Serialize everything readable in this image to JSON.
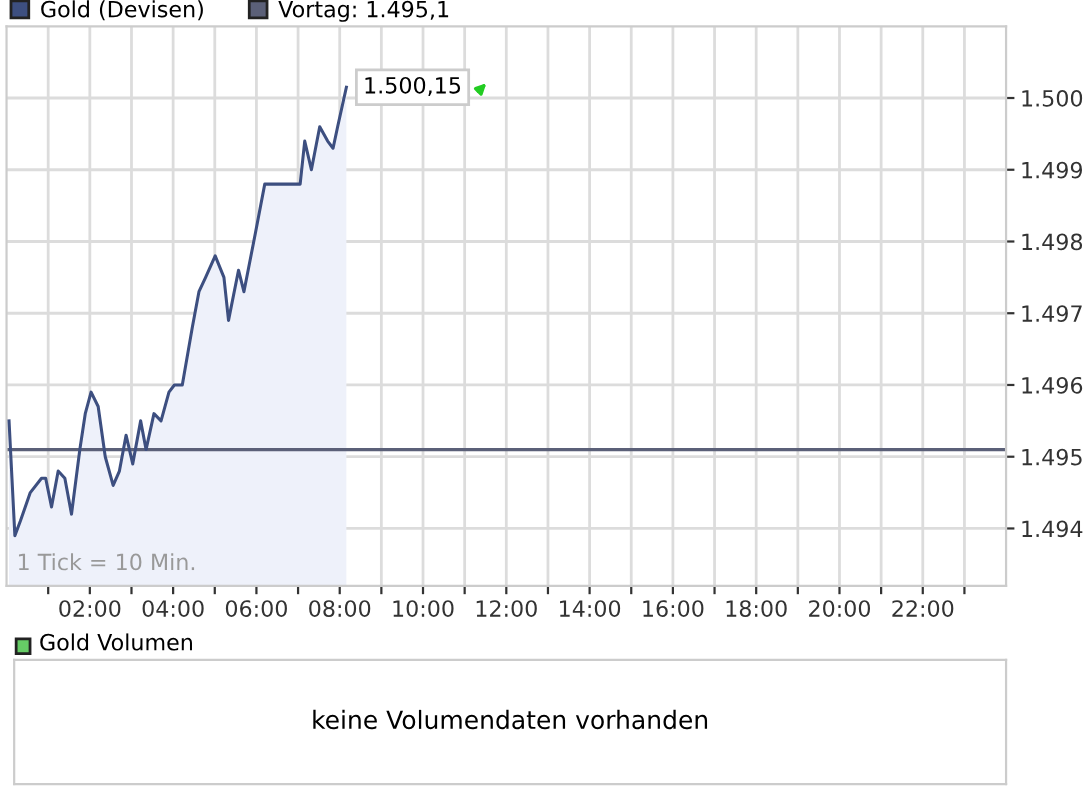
{
  "chart_data": [
    {
      "type": "area",
      "xlim": [
        0,
        24
      ],
      "ylim": [
        1493.2,
        1501.0
      ],
      "xticks": [
        {
          "value": 1,
          "label": null
        },
        {
          "value": 2,
          "label": "02:00"
        },
        {
          "value": 3,
          "label": null
        },
        {
          "value": 4,
          "label": "04:00"
        },
        {
          "value": 5,
          "label": null
        },
        {
          "value": 6,
          "label": "06:00"
        },
        {
          "value": 7,
          "label": null
        },
        {
          "value": 8,
          "label": "08:00"
        },
        {
          "value": 9,
          "label": null
        },
        {
          "value": 10,
          "label": "10:00"
        },
        {
          "value": 11,
          "label": null
        },
        {
          "value": 12,
          "label": "12:00"
        },
        {
          "value": 13,
          "label": null
        },
        {
          "value": 14,
          "label": "14:00"
        },
        {
          "value": 15,
          "label": null
        },
        {
          "value": 16,
          "label": "16:00"
        },
        {
          "value": 17,
          "label": null
        },
        {
          "value": 18,
          "label": "18:00"
        },
        {
          "value": 19,
          "label": null
        },
        {
          "value": 20,
          "label": "20:00"
        },
        {
          "value": 21,
          "label": null
        },
        {
          "value": 22,
          "label": "22:00"
        },
        {
          "value": 23,
          "label": null
        }
      ],
      "yticks": [
        {
          "value": 1494,
          "label": "1.494"
        },
        {
          "value": 1495,
          "label": "1.495"
        },
        {
          "value": 1496,
          "label": "1.496"
        },
        {
          "value": 1497,
          "label": "1.497"
        },
        {
          "value": 1498,
          "label": "1.498"
        },
        {
          "value": 1499,
          "label": "1.499"
        },
        {
          "value": 1500,
          "label": "1.500"
        }
      ],
      "grid": true,
      "legend": "top left",
      "series": [
        {
          "name": "Gold (Devisen)",
          "color": "#3d4f80",
          "x": [
            0.06,
            0.13,
            0.2,
            0.33,
            0.57,
            0.84,
            0.94,
            1.08,
            1.24,
            1.4,
            1.56,
            1.76,
            1.89,
            2.03,
            2.2,
            2.37,
            2.56,
            2.71,
            2.87,
            3.03,
            3.22,
            3.35,
            3.54,
            3.71,
            3.9,
            4.03,
            4.22,
            4.46,
            4.62,
            4.78,
            5.01,
            5.22,
            5.33,
            5.57,
            5.7,
            5.97,
            6.2,
            7.05,
            7.16,
            7.32,
            7.52,
            7.71,
            7.84,
            7.95,
            8.16
          ],
          "values": [
            1495.5,
            1494.7,
            1493.9,
            1494.1,
            1494.5,
            1494.7,
            1494.7,
            1494.3,
            1494.8,
            1494.7,
            1494.2,
            1495.1,
            1495.6,
            1495.9,
            1495.7,
            1495.0,
            1494.6,
            1494.8,
            1495.3,
            1494.9,
            1495.5,
            1495.1,
            1495.6,
            1495.5,
            1495.9,
            1496.0,
            1496.0,
            1496.8,
            1497.3,
            1497.5,
            1497.8,
            1497.5,
            1496.9,
            1497.6,
            1497.3,
            1498.1,
            1498.8,
            1498.8,
            1499.4,
            1499.0,
            1499.6,
            1499.4,
            1499.3,
            1499.6,
            1500.15
          ]
        }
      ],
      "ref_lines": [
        {
          "axis": "y",
          "value": 1495.1,
          "label": "Vortag: 1.495,1",
          "color": "#5b6078"
        }
      ],
      "annotations": [
        {
          "text": "1.500,15",
          "x": 8.16,
          "y": 1500.15
        },
        "1 Tick = 10 Min."
      ]
    },
    {
      "type": "other",
      "title": "Gold Volumen",
      "annotations": [
        "keine Volumendaten vorhanden"
      ]
    }
  ]
}
